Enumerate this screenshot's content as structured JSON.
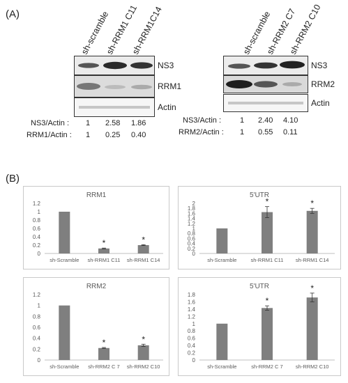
{
  "panel_a_label": "(A)",
  "panel_b_label": "(B)",
  "blot_left": {
    "lanes": [
      "sh-scramble",
      "sh-RRM1 C11",
      "sh-RRM1C14"
    ],
    "bands": [
      "NS3",
      "RRM1",
      "Actin"
    ],
    "ratios": [
      {
        "label": "NS3/Actin :",
        "values": [
          "1",
          "2.58",
          "1.86"
        ]
      },
      {
        "label": "RRM1/Actin :",
        "values": [
          "1",
          "0.25",
          "0.40"
        ]
      }
    ]
  },
  "blot_right": {
    "lanes": [
      "sh-scramble",
      "sh-RRM2 C7",
      "sh-RRM2 C10"
    ],
    "bands": [
      "NS3",
      "RRM2",
      "Actin"
    ],
    "ratios": [
      {
        "label": "NS3/Actin :",
        "values": [
          "1",
          "2.40",
          "4.10"
        ]
      },
      {
        "label": "RRM2/Actin :",
        "values": [
          "1",
          "0.55",
          "0.11"
        ]
      }
    ]
  },
  "chart_data": [
    {
      "type": "bar",
      "title": "RRM1",
      "categories": [
        "sh-Scramble",
        "sh-RRM1 C11",
        "sh-RRM1 C14"
      ],
      "values": [
        1.0,
        0.12,
        0.2
      ],
      "errors": [
        0,
        0.01,
        0.01
      ],
      "significance": [
        "",
        "*",
        "*"
      ],
      "ylim": [
        0,
        1.2
      ],
      "yticks": [
        "0",
        "0.2",
        "0.4",
        "0.6",
        "0.8",
        "1",
        "1.2"
      ],
      "bar_color": "#7f7f7f",
      "grid": false
    },
    {
      "type": "bar",
      "title": "5'UTR",
      "categories": [
        "sh-Scramble",
        "sh-RRM1 C11",
        "sh-RRM1 C14"
      ],
      "values": [
        1.0,
        1.65,
        1.7
      ],
      "errors": [
        0,
        0.22,
        0.1
      ],
      "significance": [
        "",
        "*",
        "*"
      ],
      "ylim": [
        0,
        2
      ],
      "yticks": [
        "0",
        "0.2",
        "0.4",
        "0.6",
        "0.8",
        "1",
        "1.2",
        "1.4",
        "1.6",
        "1.8",
        "2"
      ],
      "bar_color": "#7f7f7f",
      "grid": false
    },
    {
      "type": "bar",
      "title": "RRM2",
      "categories": [
        "sh-Scramble",
        "sh-RRM2  C 7",
        "sh-RRM2 C10"
      ],
      "values": [
        1.0,
        0.22,
        0.27
      ],
      "errors": [
        0,
        0.01,
        0.02
      ],
      "significance": [
        "",
        "*",
        "*"
      ],
      "ylim": [
        0,
        1.2
      ],
      "yticks": [
        "0",
        "0.2",
        "0.4",
        "0.6",
        "0.8",
        "1",
        "1.2"
      ],
      "bar_color": "#7f7f7f",
      "grid": false
    },
    {
      "type": "bar",
      "title": "5'UTR",
      "categories": [
        "sh-Scramble",
        "sh-RRM2  C 7",
        "sh-RRM2 C10"
      ],
      "values": [
        1.0,
        1.43,
        1.72
      ],
      "errors": [
        0,
        0.06,
        0.12
      ],
      "significance": [
        "",
        "*",
        "*"
      ],
      "ylim": [
        0,
        1.8
      ],
      "yticks": [
        "0",
        "0.2",
        "0.4",
        "0.6",
        "0.8",
        "1",
        "1.2",
        "1.4",
        "1.6",
        "1.8"
      ],
      "bar_color": "#7f7f7f",
      "grid": false
    }
  ]
}
